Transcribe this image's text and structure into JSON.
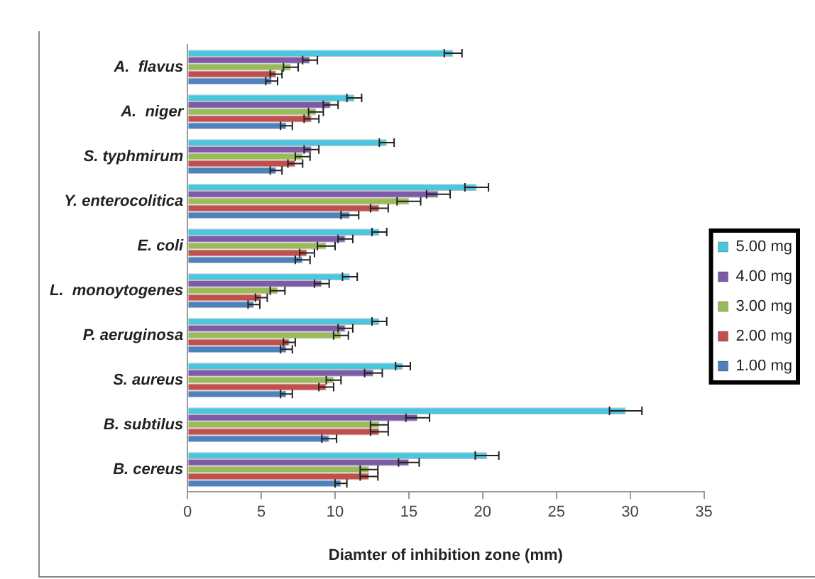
{
  "chart_data": {
    "type": "bar",
    "orientation": "horizontal",
    "xlabel": "Diamter of inhibition zone (mm)",
    "categories": [
      "A.  flavus",
      "A.  niger",
      "S. typhmirum",
      "Y. enterocolitica",
      "E. coli",
      "L.  monoytogenes",
      "P. aeruginosa",
      "S. aureus",
      "B. subtilus",
      "B. cereus"
    ],
    "series": [
      {
        "name": "5.00 mg",
        "color": "#4bc6df",
        "values": [
          18.0,
          11.3,
          13.5,
          19.6,
          13.0,
          11.0,
          13.0,
          14.6,
          29.7,
          20.3
        ],
        "errors": [
          0.6,
          0.5,
          0.5,
          0.8,
          0.5,
          0.5,
          0.5,
          0.5,
          1.1,
          0.8
        ]
      },
      {
        "name": "4.00 mg",
        "color": "#7d5ba6",
        "values": [
          8.3,
          9.7,
          8.4,
          17.0,
          10.7,
          9.1,
          10.7,
          12.6,
          15.6,
          15.0
        ],
        "errors": [
          0.5,
          0.5,
          0.5,
          0.8,
          0.5,
          0.5,
          0.5,
          0.6,
          0.8,
          0.7
        ]
      },
      {
        "name": "3.00 mg",
        "color": "#9bbb59",
        "values": [
          7.0,
          8.7,
          7.8,
          15.0,
          9.4,
          6.1,
          10.4,
          9.9,
          13.0,
          12.3
        ],
        "errors": [
          0.5,
          0.5,
          0.5,
          0.8,
          0.6,
          0.5,
          0.5,
          0.5,
          0.6,
          0.6
        ]
      },
      {
        "name": "2.00 mg",
        "color": "#c0504d",
        "values": [
          6.0,
          8.4,
          7.3,
          13.0,
          8.1,
          5.0,
          6.9,
          9.4,
          13.0,
          12.3
        ],
        "errors": [
          0.4,
          0.5,
          0.5,
          0.6,
          0.5,
          0.4,
          0.4,
          0.5,
          0.6,
          0.6
        ]
      },
      {
        "name": "1.00 mg",
        "color": "#4f81bd",
        "values": [
          5.7,
          6.7,
          6.0,
          11.0,
          7.8,
          4.5,
          6.7,
          6.7,
          9.6,
          10.4
        ],
        "errors": [
          0.4,
          0.4,
          0.4,
          0.6,
          0.5,
          0.4,
          0.4,
          0.4,
          0.5,
          0.4
        ]
      }
    ],
    "xlim": [
      0,
      35
    ],
    "xticks": [
      0,
      5,
      10,
      15,
      20,
      25,
      30,
      35
    ],
    "grid": false,
    "legend": "right"
  }
}
